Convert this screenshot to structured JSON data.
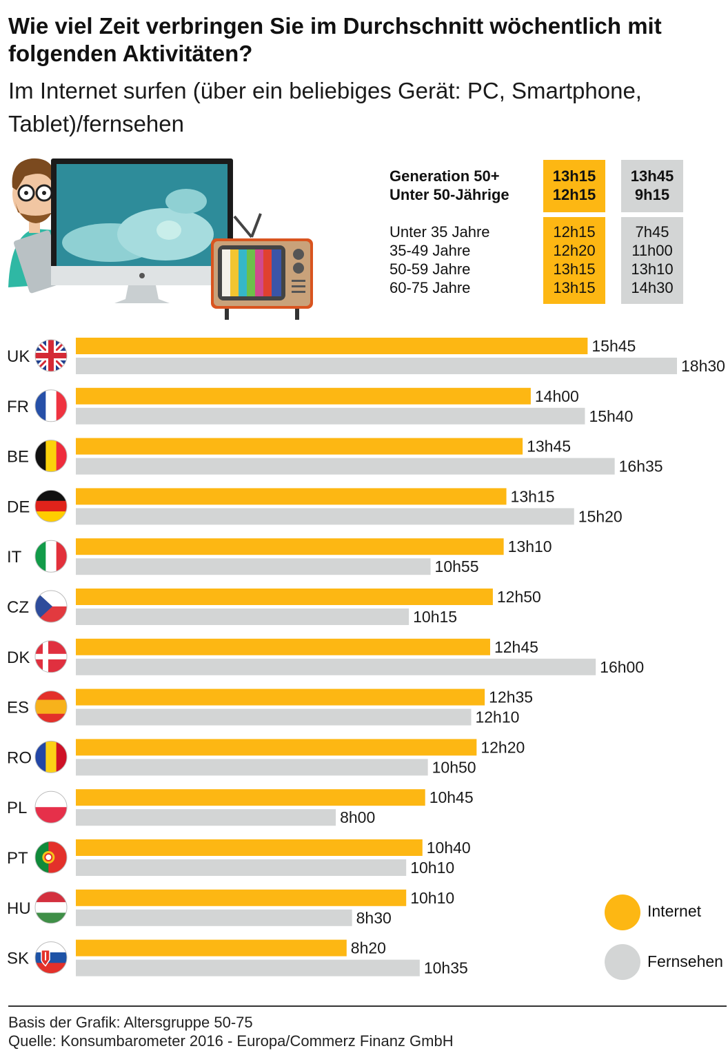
{
  "title": "Wie viel Zeit verbringen Sie im Durchschnitt wöchentlich mit folgenden Aktivitäten?",
  "subtitle": "Im Internet surfen (über ein beliebiges Gerät: PC, Smartphone, Tablet)/fernsehen",
  "summary": {
    "groups": [
      {
        "label": "Generation 50+",
        "internet": "13h15",
        "tv": "13h45"
      },
      {
        "label": "Unter 50-Jährige",
        "internet": "12h15",
        "tv": "9h15"
      }
    ],
    "ages": [
      {
        "label": "Unter 35 Jahre",
        "internet": "12h15",
        "tv": "7h45"
      },
      {
        "label": "35-49 Jahre",
        "internet": "12h20",
        "tv": "11h00"
      },
      {
        "label": "50-59 Jahre",
        "internet": "13h15",
        "tv": "13h10"
      },
      {
        "label": "60-75 Jahre",
        "internet": "13h15",
        "tv": "14h30"
      }
    ]
  },
  "legend": {
    "internet": "Internet",
    "tv": "Fernsehen"
  },
  "colors": {
    "internet": "#FDB713",
    "tv": "#D3D5D5"
  },
  "chart_data": {
    "type": "bar",
    "orientation": "horizontal",
    "categories": [
      "UK",
      "FR",
      "BE",
      "DE",
      "IT",
      "CZ",
      "DK",
      "ES",
      "RO",
      "PL",
      "PT",
      "HU",
      "SK"
    ],
    "series": [
      {
        "name": "Internet",
        "values": [
          15.75,
          14.0,
          13.75,
          13.25,
          13.1667,
          12.8333,
          12.75,
          12.5833,
          12.3333,
          10.75,
          10.6667,
          10.1667,
          8.3333
        ],
        "labels": [
          "15h45",
          "14h00",
          "13h45",
          "13h15",
          "13h10",
          "12h50",
          "12h45",
          "12h35",
          "12h20",
          "10h45",
          "10h40",
          "10h10",
          "8h20"
        ]
      },
      {
        "name": "Fernsehen",
        "values": [
          18.5,
          15.6667,
          16.5833,
          15.3333,
          10.9167,
          10.25,
          16.0,
          12.1667,
          10.8333,
          8.0,
          10.1667,
          8.5,
          10.5833
        ],
        "labels": [
          "18h30",
          "15h40",
          "16h35",
          "15h20",
          "10h55",
          "10h15",
          "16h00",
          "12h10",
          "10h50",
          "8h00",
          "10h10",
          "8h30",
          "10h35"
        ]
      }
    ],
    "unit": "hours per week",
    "xlim": [
      0,
      18.5
    ],
    "grid": false,
    "legend_position": "bottom-right"
  },
  "footer": {
    "basis": "Basis der Grafik: Altersgruppe 50-75",
    "source": "Quelle: Konsumbarometer 2016 - Europa/Commerz Finanz GmbH"
  }
}
